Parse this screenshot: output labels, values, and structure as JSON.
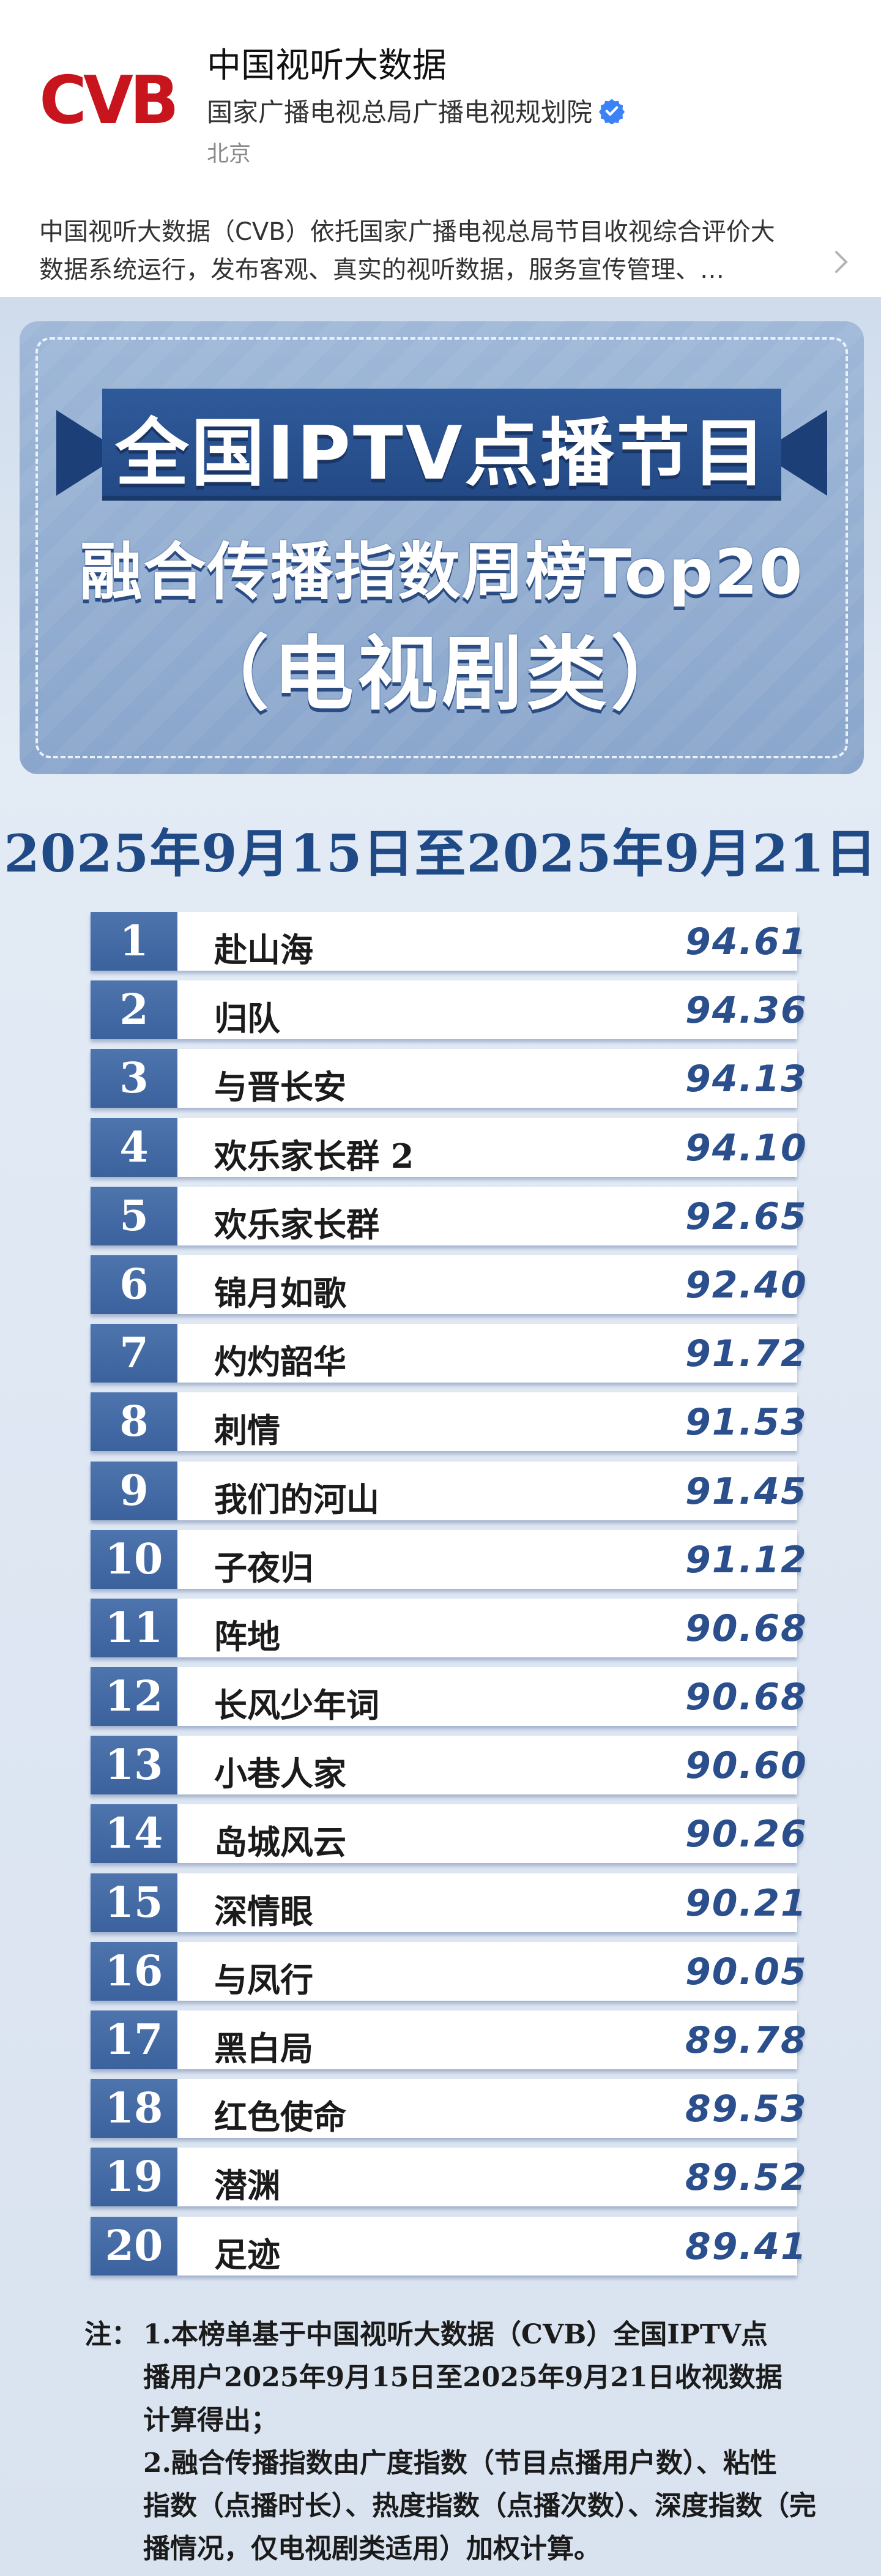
{
  "account": {
    "logo_text": "CVB",
    "name": "中国视听大数据",
    "org": "国家广播电视总局广播电视规划院",
    "location": "北京",
    "intro_line1": "中国视听大数据（CVB）依托国家广播电视总局节目收视综合评价大",
    "intro_line2": "数据系统运行，发布客观、真实的视听数据，服务宣传管理、…"
  },
  "poster": {
    "title_main": "全国IPTV点播节目",
    "title_sub": "融合传播指数周榜Top20",
    "title_category": "（电视剧类）",
    "date_range": "2025年9月15日至2025年9月21日"
  },
  "ranking": [
    {
      "rank": "1",
      "title": "赴山海",
      "score": "94.61"
    },
    {
      "rank": "2",
      "title": "归队",
      "score": "94.36"
    },
    {
      "rank": "3",
      "title": "与晋长安",
      "score": "94.13"
    },
    {
      "rank": "4",
      "title": "欢乐家长群 2",
      "score": "94.10"
    },
    {
      "rank": "5",
      "title": "欢乐家长群",
      "score": "92.65"
    },
    {
      "rank": "6",
      "title": "锦月如歌",
      "score": "92.40"
    },
    {
      "rank": "7",
      "title": "灼灼韶华",
      "score": "91.72"
    },
    {
      "rank": "8",
      "title": "刺情",
      "score": "91.53"
    },
    {
      "rank": "9",
      "title": "我们的河山",
      "score": "91.45"
    },
    {
      "rank": "10",
      "title": "子夜归",
      "score": "91.12"
    },
    {
      "rank": "11",
      "title": "阵地",
      "score": "90.68"
    },
    {
      "rank": "12",
      "title": "长风少年词",
      "score": "90.68"
    },
    {
      "rank": "13",
      "title": "小巷人家",
      "score": "90.60"
    },
    {
      "rank": "14",
      "title": "岛城风云",
      "score": "90.26"
    },
    {
      "rank": "15",
      "title": "深情眼",
      "score": "90.21"
    },
    {
      "rank": "16",
      "title": "与凤行",
      "score": "90.05"
    },
    {
      "rank": "17",
      "title": "黑白局",
      "score": "89.78"
    },
    {
      "rank": "18",
      "title": "红色使命",
      "score": "89.53"
    },
    {
      "rank": "19",
      "title": "潜渊",
      "score": "89.52"
    },
    {
      "rank": "20",
      "title": "足迹",
      "score": "89.41"
    }
  ],
  "notes": {
    "label": "注：",
    "lines": [
      "1.本榜单基于中国视听大数据（CVB）全国IPTV点",
      "播用户2025年9月15日至2025年9月21日收视数据",
      "计算得出；",
      "2.融合传播指数由广度指数（节目点播用户数）、粘性",
      "指数（点播时长）、热度指数（点播次数）、深度指数（完",
      "播情况，仅电视剧类适用）加权计算。"
    ]
  },
  "colors": {
    "logo_red": "#c8151d",
    "ribbon_blue": "#2f5a9a",
    "rank_badge_blue": "#4e74ad",
    "score_blue": "#2a4f8c",
    "verified_blue": "#3b82f6"
  }
}
